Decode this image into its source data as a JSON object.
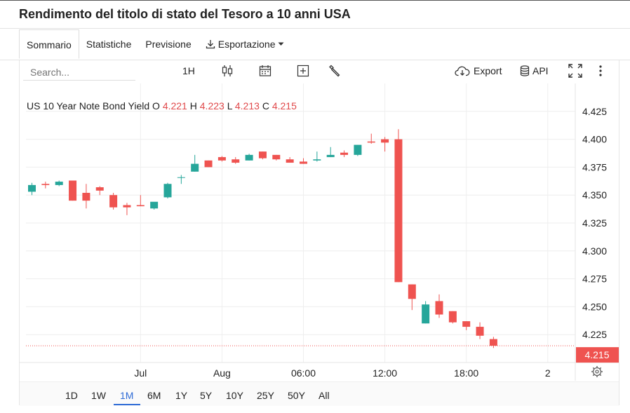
{
  "page_title": "Rendimento del titolo di stato del Tesoro a 10 anni USA",
  "tabs": [
    {
      "label": "Sommario",
      "active": true
    },
    {
      "label": "Statistiche"
    },
    {
      "label": "Previsione"
    },
    {
      "label": "Esportazione",
      "has_dropdown": true
    }
  ],
  "toolbar": {
    "search_placeholder": "Search...",
    "interval_label": "1H",
    "export_label": "Export",
    "api_label": "API"
  },
  "legend": {
    "symbol": "US 10 Year Note Bond Yield",
    "o_label": "O",
    "o_value": "4.221",
    "h_label": "H",
    "h_value": "4.223",
    "l_label": "L",
    "l_value": "4.213",
    "c_label": "C",
    "c_value": "4.215"
  },
  "ranges": [
    "1D",
    "1W",
    "1M",
    "6M",
    "1Y",
    "5Y",
    "10Y",
    "25Y",
    "50Y",
    "All"
  ],
  "active_range": "1M",
  "colors": {
    "up": "#26a69a",
    "down": "#ef5350",
    "grid": "#eeeeee",
    "price_tag": "#ef5350",
    "accent": "#2e6bd6"
  },
  "chart_data": {
    "type": "candlestick",
    "ylim": [
      4.2,
      4.45
    ],
    "y_ticks": [
      "4.425",
      "4.400",
      "4.375",
      "4.350",
      "4.325",
      "4.300",
      "4.275",
      "4.250",
      "4.225"
    ],
    "x_ticks": [
      {
        "label": "Jul",
        "index": 8
      },
      {
        "label": "Aug",
        "index": 14
      },
      {
        "label": "06:00",
        "index": 20
      },
      {
        "label": "12:00",
        "index": 26
      },
      {
        "label": "18:00",
        "index": 32
      },
      {
        "label": "2",
        "index": 38
      }
    ],
    "last_price": "4.215",
    "candles": [
      {
        "o": 4.353,
        "h": 4.361,
        "l": 4.35,
        "c": 4.359
      },
      {
        "o": 4.36,
        "h": 4.362,
        "l": 4.356,
        "c": 4.359
      },
      {
        "o": 4.359,
        "h": 4.363,
        "l": 4.358,
        "c": 4.362
      },
      {
        "o": 4.363,
        "h": 4.363,
        "l": 4.345,
        "c": 4.345
      },
      {
        "o": 4.352,
        "h": 4.36,
        "l": 4.338,
        "c": 4.345
      },
      {
        "o": 4.357,
        "h": 4.358,
        "l": 4.35,
        "c": 4.354
      },
      {
        "o": 4.35,
        "h": 4.352,
        "l": 4.337,
        "c": 4.339
      },
      {
        "o": 4.341,
        "h": 4.343,
        "l": 4.332,
        "c": 4.339
      },
      {
        "o": 4.341,
        "h": 4.35,
        "l": 4.34,
        "c": 4.34
      },
      {
        "o": 4.338,
        "h": 4.343,
        "l": 4.337,
        "c": 4.344
      },
      {
        "o": 4.348,
        "h": 4.361,
        "l": 4.347,
        "c": 4.36
      },
      {
        "o": 4.366,
        "h": 4.368,
        "l": 4.36,
        "c": 4.366
      },
      {
        "o": 4.371,
        "h": 4.386,
        "l": 4.371,
        "c": 4.378
      },
      {
        "o": 4.381,
        "h": 4.381,
        "l": 4.375,
        "c": 4.375
      },
      {
        "o": 4.384,
        "h": 4.385,
        "l": 4.38,
        "c": 4.381
      },
      {
        "o": 4.382,
        "h": 4.384,
        "l": 4.378,
        "c": 4.379
      },
      {
        "o": 4.381,
        "h": 4.387,
        "l": 4.381,
        "c": 4.386
      },
      {
        "o": 4.389,
        "h": 4.389,
        "l": 4.382,
        "c": 4.383
      },
      {
        "o": 4.386,
        "h": 4.386,
        "l": 4.381,
        "c": 4.382
      },
      {
        "o": 4.382,
        "h": 4.384,
        "l": 4.379,
        "c": 4.379
      },
      {
        "o": 4.38,
        "h": 4.383,
        "l": 4.378,
        "c": 4.378
      },
      {
        "o": 4.381,
        "h": 4.389,
        "l": 4.38,
        "c": 4.382
      },
      {
        "o": 4.384,
        "h": 4.393,
        "l": 4.384,
        "c": 4.386
      },
      {
        "o": 4.388,
        "h": 4.39,
        "l": 4.384,
        "c": 4.386
      },
      {
        "o": 4.386,
        "h": 4.395,
        "l": 4.385,
        "c": 4.395
      },
      {
        "o": 4.398,
        "h": 4.405,
        "l": 4.396,
        "c": 4.397
      },
      {
        "o": 4.4,
        "h": 4.402,
        "l": 4.389,
        "c": 4.397
      },
      {
        "o": 4.4,
        "h": 4.409,
        "l": 4.272,
        "c": 4.272
      },
      {
        "o": 4.27,
        "h": 4.27,
        "l": 4.247,
        "c": 4.257
      },
      {
        "o": 4.235,
        "h": 4.255,
        "l": 4.235,
        "c": 4.252
      },
      {
        "o": 4.255,
        "h": 4.261,
        "l": 4.24,
        "c": 4.243
      },
      {
        "o": 4.246,
        "h": 4.246,
        "l": 4.235,
        "c": 4.236
      },
      {
        "o": 4.237,
        "h": 4.237,
        "l": 4.229,
        "c": 4.232
      },
      {
        "o": 4.232,
        "h": 4.236,
        "l": 4.221,
        "c": 4.224
      },
      {
        "o": 4.221,
        "h": 4.223,
        "l": 4.213,
        "c": 4.215
      }
    ]
  }
}
